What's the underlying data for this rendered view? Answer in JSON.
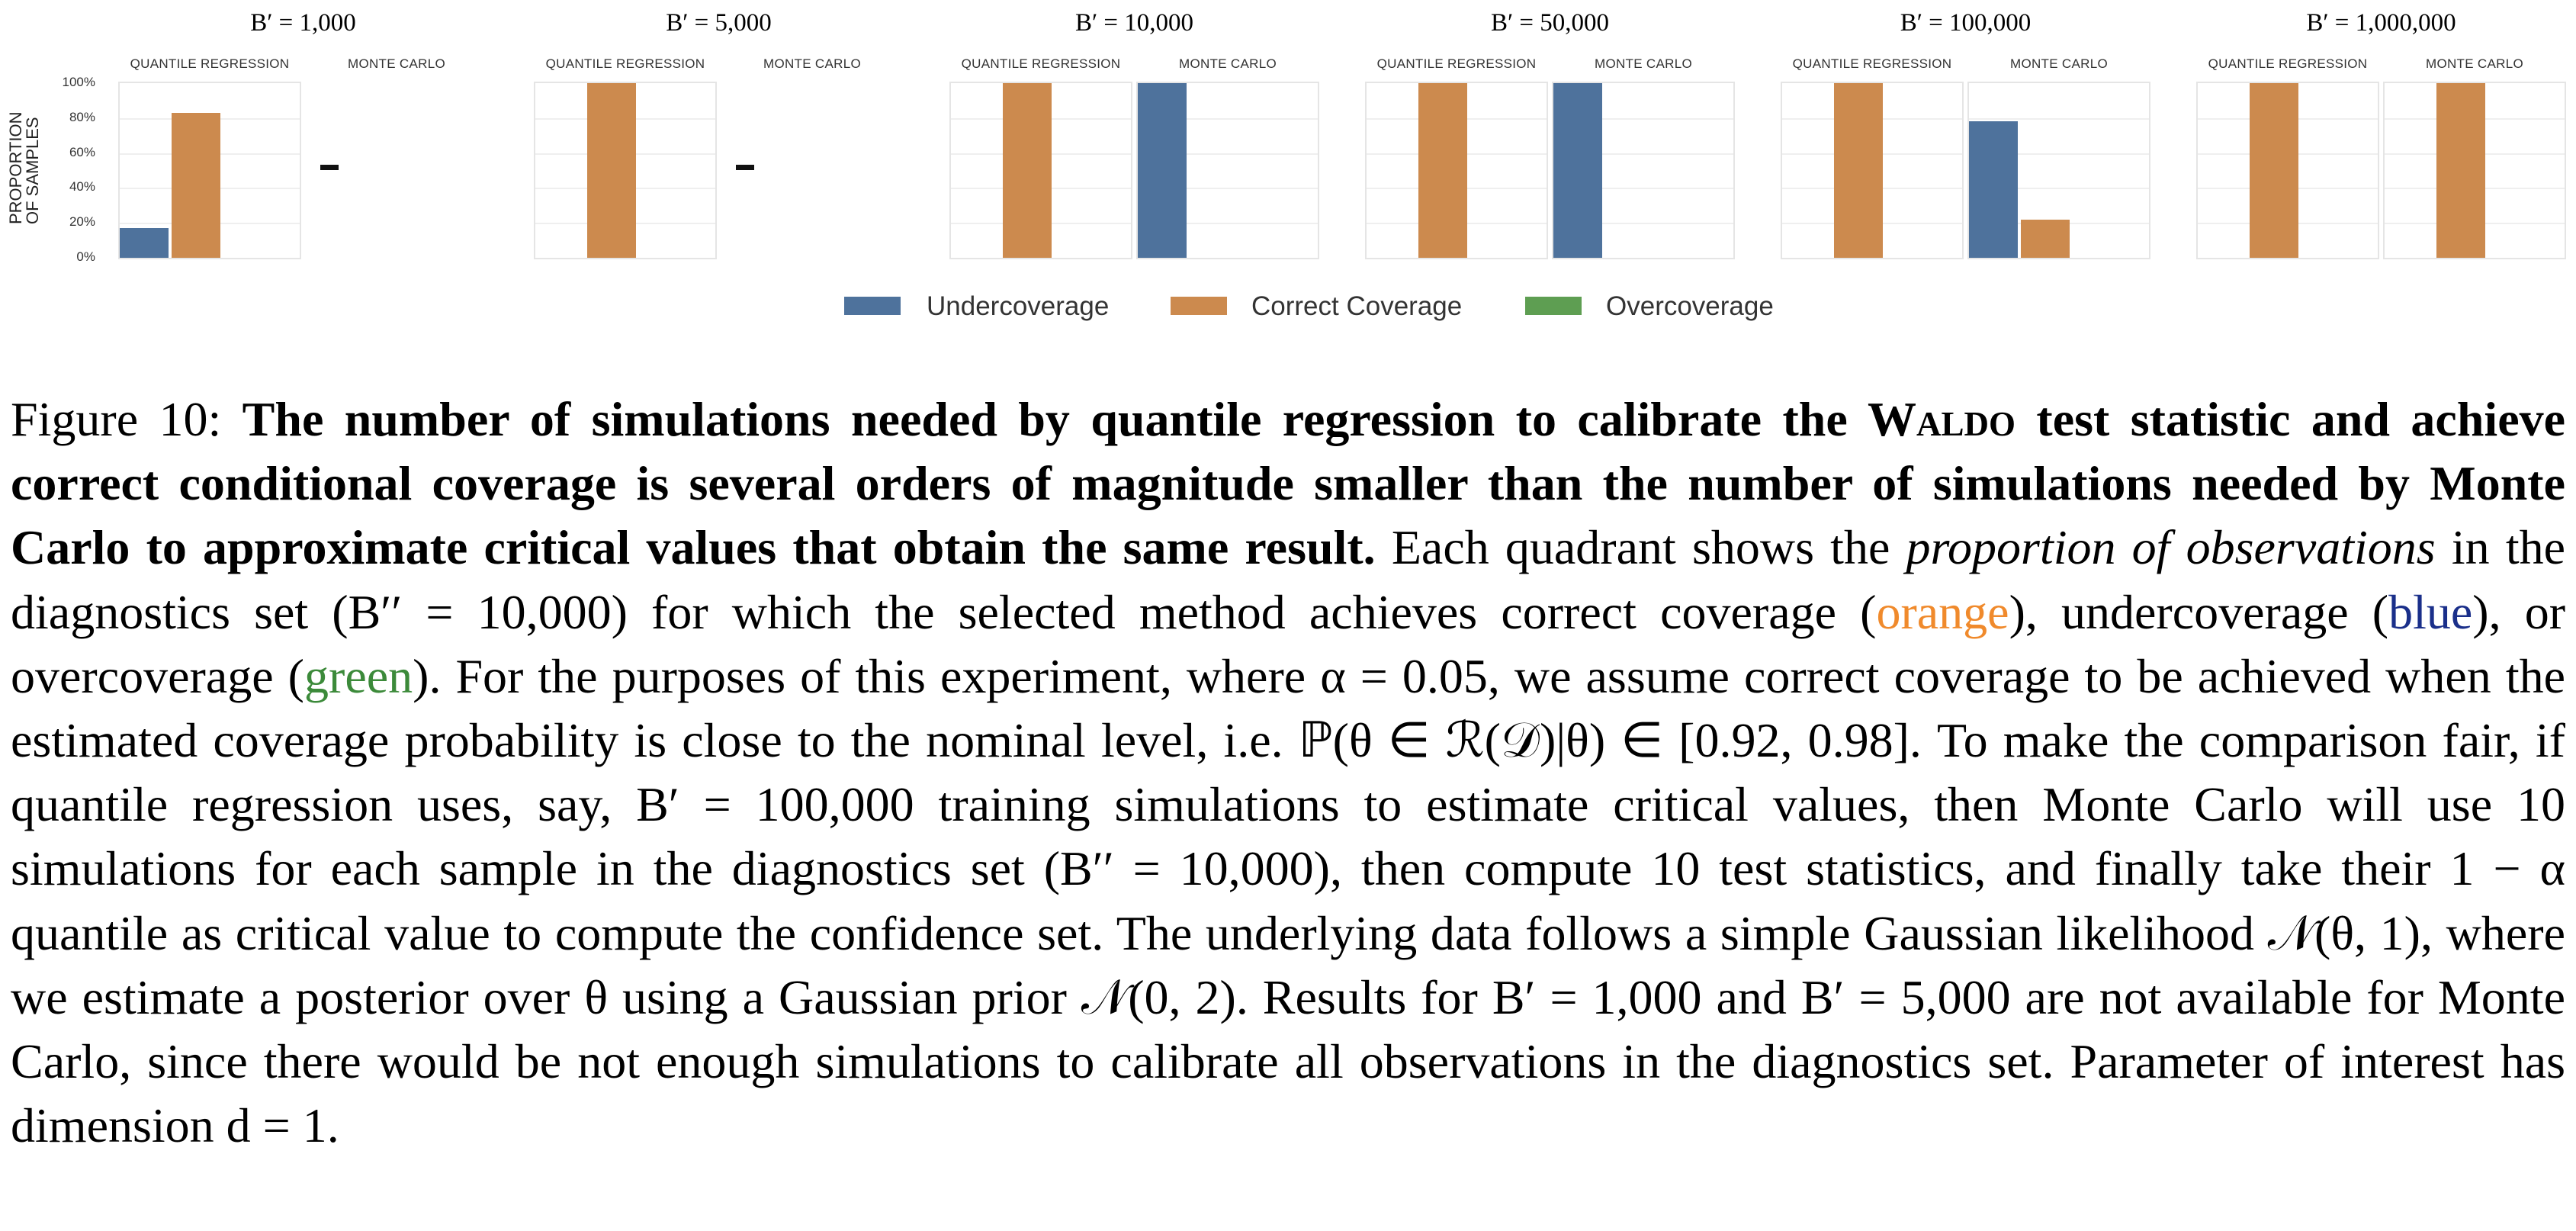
{
  "chart_data": {
    "type": "bar",
    "y_axis": {
      "label_lines": [
        "PROPORTION",
        "OF SAMPLES"
      ],
      "ticks": [
        "100%",
        "80%",
        "60%",
        "40%",
        "20%",
        "0%"
      ],
      "ylim": [
        0,
        100
      ]
    },
    "categories": [
      "Undercoverage",
      "Correct Coverage",
      "Overcoverage"
    ],
    "colors": {
      "Undercoverage": "#4e729c",
      "Correct Coverage": "#cc8a4e",
      "Overcoverage": "#5e9e52"
    },
    "legend": [
      "Undercoverage",
      "Correct Coverage",
      "Overcoverage"
    ],
    "panels": [
      {
        "title": "B′ = 1,000",
        "subplots": [
          {
            "subtitle": "QUANTILE REGRESSION",
            "available": true,
            "values": [
              17,
              83,
              0
            ]
          },
          {
            "subtitle": "MONTE CARLO",
            "available": false,
            "values": null,
            "na_mark": "-"
          }
        ]
      },
      {
        "title": "B′ = 5,000",
        "subplots": [
          {
            "subtitle": "QUANTILE REGRESSION",
            "available": true,
            "values": [
              0,
              100,
              0
            ]
          },
          {
            "subtitle": "MONTE CARLO",
            "available": false,
            "values": null,
            "na_mark": "-"
          }
        ]
      },
      {
        "title": "B′ = 10,000",
        "subplots": [
          {
            "subtitle": "QUANTILE REGRESSION",
            "available": true,
            "values": [
              0,
              100,
              0
            ]
          },
          {
            "subtitle": "MONTE CARLO",
            "available": true,
            "values": [
              100,
              0,
              0
            ]
          }
        ]
      },
      {
        "title": "B′ = 50,000",
        "subplots": [
          {
            "subtitle": "QUANTILE REGRESSION",
            "available": true,
            "values": [
              0,
              100,
              0
            ]
          },
          {
            "subtitle": "MONTE CARLO",
            "available": true,
            "values": [
              100,
              0,
              0
            ]
          }
        ]
      },
      {
        "title": "B′ = 100,000",
        "subplots": [
          {
            "subtitle": "QUANTILE REGRESSION",
            "available": true,
            "values": [
              0,
              100,
              0
            ]
          },
          {
            "subtitle": "MONTE CARLO",
            "available": true,
            "values": [
              78,
              22,
              0
            ]
          }
        ]
      },
      {
        "title": "B′ = 1,000,000",
        "subplots": [
          {
            "subtitle": "QUANTILE REGRESSION",
            "available": true,
            "values": [
              0,
              100,
              0
            ]
          },
          {
            "subtitle": "MONTE CARLO",
            "available": true,
            "values": [
              0,
              100,
              0
            ]
          }
        ]
      }
    ]
  },
  "caption": {
    "label": "Figure 10:",
    "bold_a": "The number of simulations needed by quantile regression to calibrate the ",
    "waldo_w": "W",
    "waldo_rest": "aldo",
    "bold_b": " test statistic and achieve correct conditional coverage is several orders of magnitude smaller than the number of simulations needed by Monte Carlo to approximate critical values that obtain the same result.",
    "t1": " Each quadrant shows the ",
    "t1_italic": "proportion of observations",
    "t2": " in the diagnostics set (B′′ = 10,000) for which the selected method achieves correct coverage (",
    "orange": "orange",
    "t3": "), undercoverage (",
    "blue": "blue",
    "t4": "), or overcoverage (",
    "green": "green",
    "t5": "). For the purposes of this experiment, where α = 0.05, we assume correct coverage to be achieved when the estimated coverage probability is close to the nominal level, i.e. ℙ(θ ∈ ℛ(𝒟)|θ) ∈ [0.92, 0.98]. To make the comparison fair, if quantile regression uses, say, B′ = 100,000 training simulations to estimate critical values, then Monte Carlo will use 10 simulations for each sample in the diagnostics set (B′′ = 10,000), then compute 10 test statistics, and finally take their 1 − α quantile as critical value to compute the confidence set. The underlying data follows a simple Gaussian likelihood 𝒩(θ, 1), where we estimate a posterior over θ using a Gaussian prior 𝒩(0, 2). Results for B′ = 1,000 and B′ = 5,000 are not available for Monte Carlo, since there would be not enough simulations to calibrate all observations in the diagnostics set. Parameter of interest has dimension d = 1."
  }
}
